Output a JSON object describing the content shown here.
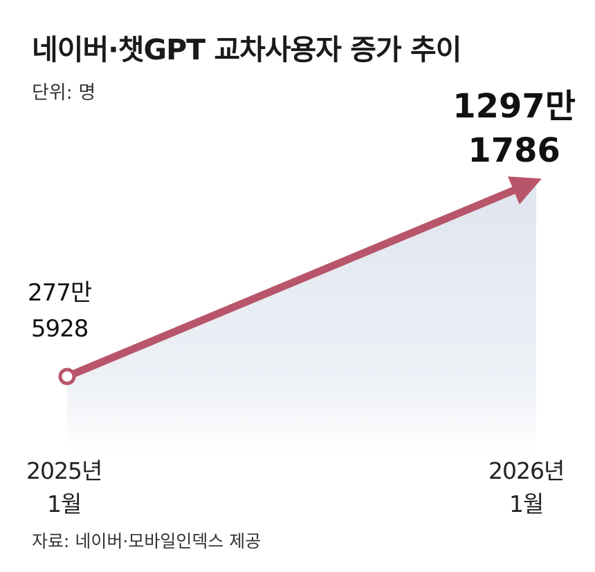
{
  "chart_data": {
    "type": "area",
    "title": "네이버·챗GPT 교차사용자 증가 추이",
    "unit_label": "단위: 명",
    "categories": [
      "2025년 1월",
      "2026년 1월"
    ],
    "x_labels": [
      {
        "year": "2025년",
        "month": "1월"
      },
      {
        "year": "2026년",
        "month": "1월"
      }
    ],
    "values": [
      2775928,
      12971786
    ],
    "data_labels": [
      {
        "line1": "277만",
        "line2": "5928"
      },
      {
        "line1": "1297만",
        "line2": "1786"
      }
    ],
    "source": "자료: 네이버·모바일인덱스 제공",
    "colors": {
      "line": "#b8556a",
      "area_top": "#dfe5ef",
      "area_bottom": "#ffffff",
      "marker_fill": "#ffffff"
    }
  }
}
